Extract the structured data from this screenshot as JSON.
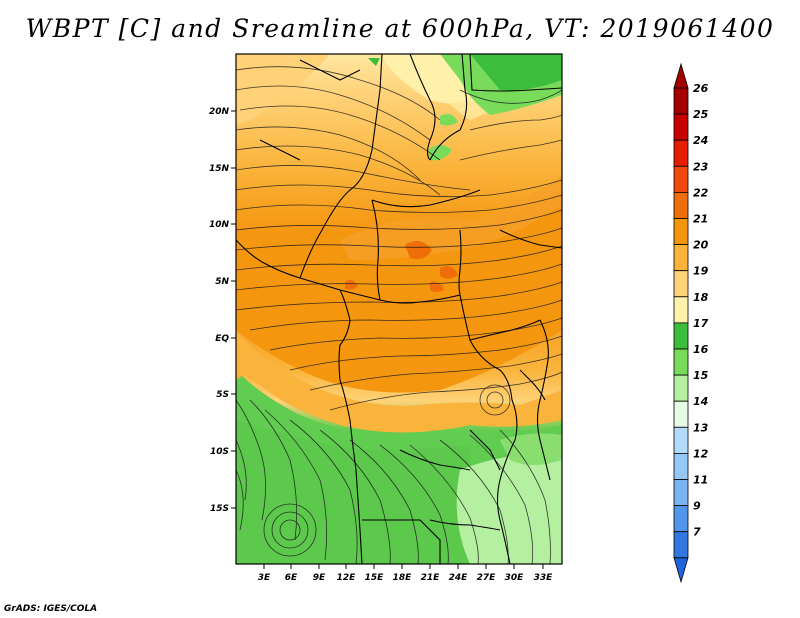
{
  "title": "WBPT [C] and Sreamline at 600hPa, VT: 2019061400",
  "footer": "GrADS: IGES/COLA",
  "map": {
    "lat_labels": [
      "20N",
      "15N",
      "10N",
      "5N",
      "EQ",
      "5S",
      "10S",
      "15S"
    ],
    "lon_labels": [
      "3E",
      "6E",
      "9E",
      "12E",
      "15E",
      "18E",
      "21E",
      "24E",
      "27E",
      "30E",
      "33E"
    ]
  },
  "colorbar": {
    "levels": [
      {
        "label": "26",
        "color": "#a50000"
      },
      {
        "label": "25",
        "color": "#c80000"
      },
      {
        "label": "24",
        "color": "#e61e00"
      },
      {
        "label": "23",
        "color": "#f04b0a"
      },
      {
        "label": "22",
        "color": "#f06e0a"
      },
      {
        "label": "21",
        "color": "#f5960f"
      },
      {
        "label": "20",
        "color": "#fab43c"
      },
      {
        "label": "19",
        "color": "#ffd278"
      },
      {
        "label": "18",
        "color": "#fff0aa"
      },
      {
        "label": "17",
        "color": "#3cbe3c"
      },
      {
        "label": "16",
        "color": "#78dc5a"
      },
      {
        "label": "15",
        "color": "#b4f0a0"
      },
      {
        "label": "14",
        "color": "#e6fae6"
      },
      {
        "label": "13",
        "color": "#b4dcfa"
      },
      {
        "label": "12",
        "color": "#96c8f5"
      },
      {
        "label": "11",
        "color": "#78b4f0"
      },
      {
        "label": "9",
        "color": "#5096ea"
      },
      {
        "label": "7",
        "color": "#3278e0"
      }
    ],
    "low_color": "#1e64dc"
  }
}
